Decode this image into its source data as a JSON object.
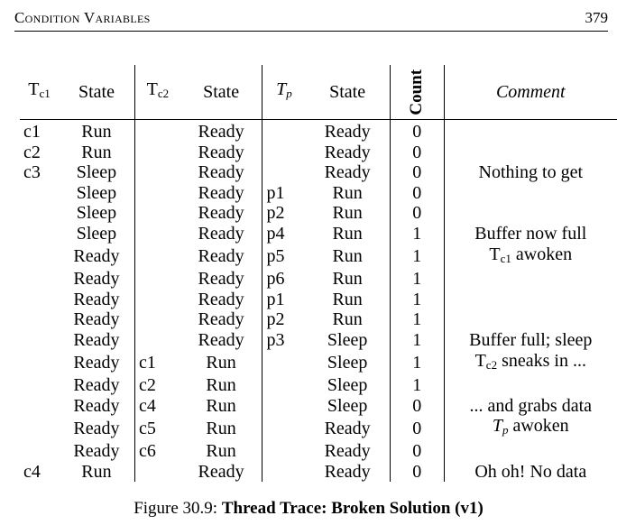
{
  "header": {
    "title": "Condition Variables",
    "page_number": "379"
  },
  "table": {
    "headers": {
      "tc1_main": "T",
      "tc1_sub": "c1",
      "state1": "State",
      "tc2_main": "T",
      "tc2_sub": "c2",
      "state2": "State",
      "tp_main": "T",
      "tp_sub": "p",
      "state3": "State",
      "count": "Count",
      "comment": "Comment"
    },
    "rows": [
      {
        "tc1": "c1",
        "s1": "Run",
        "tc2": "",
        "s2": "Ready",
        "tp": "",
        "s3": "Ready",
        "count": "0",
        "comment": ""
      },
      {
        "tc1": "c2",
        "s1": "Run",
        "tc2": "",
        "s2": "Ready",
        "tp": "",
        "s3": "Ready",
        "count": "0",
        "comment": ""
      },
      {
        "tc1": "c3",
        "s1": "Sleep",
        "tc2": "",
        "s2": "Ready",
        "tp": "",
        "s3": "Ready",
        "count": "0",
        "comment": "Nothing to get"
      },
      {
        "tc1": "",
        "s1": "Sleep",
        "tc2": "",
        "s2": "Ready",
        "tp": "p1",
        "s3": "Run",
        "count": "0",
        "comment": ""
      },
      {
        "tc1": "",
        "s1": "Sleep",
        "tc2": "",
        "s2": "Ready",
        "tp": "p2",
        "s3": "Run",
        "count": "0",
        "comment": ""
      },
      {
        "tc1": "",
        "s1": "Sleep",
        "tc2": "",
        "s2": "Ready",
        "tp": "p4",
        "s3": "Run",
        "count": "1",
        "comment": "Buffer now full"
      },
      {
        "tc1": "",
        "s1": "Ready",
        "tc2": "",
        "s2": "Ready",
        "tp": "p5",
        "s3": "Run",
        "count": "1",
        "comment": "Tc1 awoken"
      },
      {
        "tc1": "",
        "s1": "Ready",
        "tc2": "",
        "s2": "Ready",
        "tp": "p6",
        "s3": "Run",
        "count": "1",
        "comment": ""
      },
      {
        "tc1": "",
        "s1": "Ready",
        "tc2": "",
        "s2": "Ready",
        "tp": "p1",
        "s3": "Run",
        "count": "1",
        "comment": ""
      },
      {
        "tc1": "",
        "s1": "Ready",
        "tc2": "",
        "s2": "Ready",
        "tp": "p2",
        "s3": "Run",
        "count": "1",
        "comment": ""
      },
      {
        "tc1": "",
        "s1": "Ready",
        "tc2": "",
        "s2": "Ready",
        "tp": "p3",
        "s3": "Sleep",
        "count": "1",
        "comment": "Buffer full; sleep"
      },
      {
        "tc1": "",
        "s1": "Ready",
        "tc2": "c1",
        "s2": "Run",
        "tp": "",
        "s3": "Sleep",
        "count": "1",
        "comment": "Tc2 sneaks in ..."
      },
      {
        "tc1": "",
        "s1": "Ready",
        "tc2": "c2",
        "s2": "Run",
        "tp": "",
        "s3": "Sleep",
        "count": "1",
        "comment": ""
      },
      {
        "tc1": "",
        "s1": "Ready",
        "tc2": "c4",
        "s2": "Run",
        "tp": "",
        "s3": "Sleep",
        "count": "0",
        "comment": "... and grabs data"
      },
      {
        "tc1": "",
        "s1": "Ready",
        "tc2": "c5",
        "s2": "Run",
        "tp": "",
        "s3": "Ready",
        "count": "0",
        "comment": "Tp awoken"
      },
      {
        "tc1": "",
        "s1": "Ready",
        "tc2": "c6",
        "s2": "Run",
        "tp": "",
        "s3": "Ready",
        "count": "0",
        "comment": ""
      },
      {
        "tc1": "c4",
        "s1": "Run",
        "tc2": "",
        "s2": "Ready",
        "tp": "",
        "s3": "Ready",
        "count": "0",
        "comment": "Oh oh! No data"
      }
    ]
  },
  "caption": {
    "label": "Figure 30.9:",
    "title": "Thread Trace: Broken Solution (v1)"
  }
}
